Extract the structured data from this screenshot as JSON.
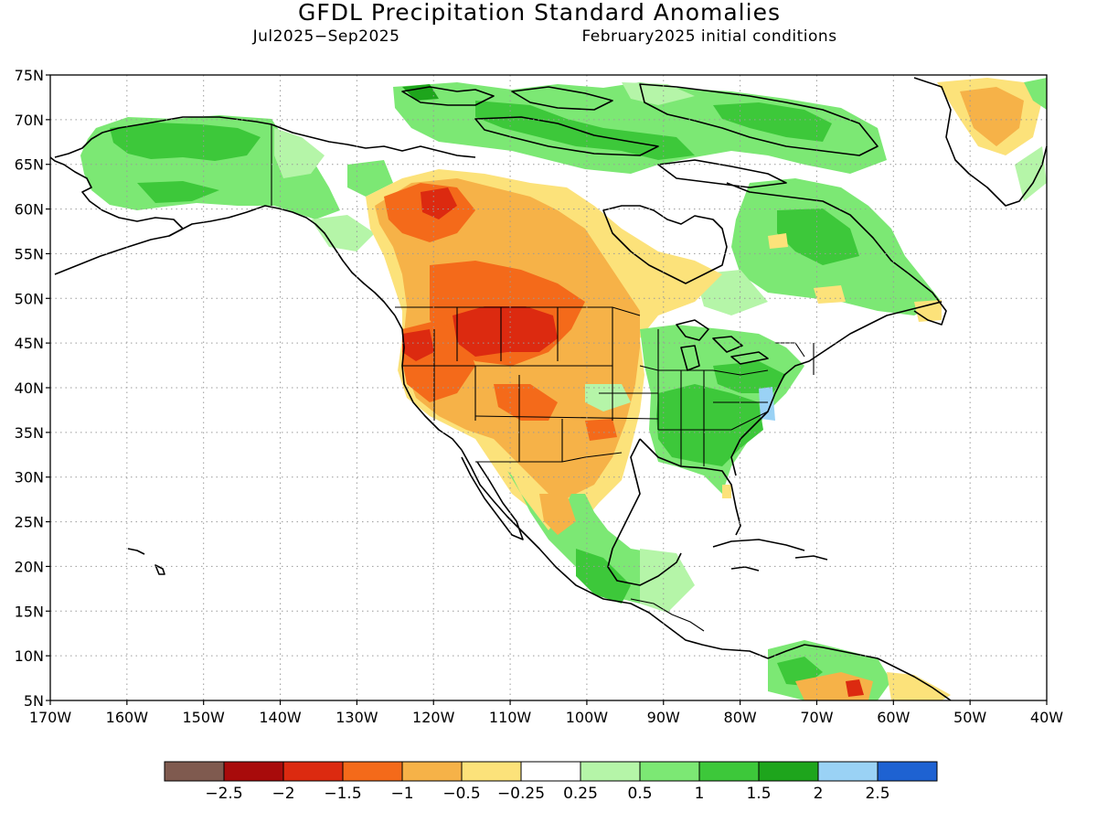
{
  "title": "GFDL Precipitation Standard Anomalies",
  "subtitle_left": "Jul2025−Sep2025",
  "subtitle_right": "February2025 initial conditions",
  "lat_labels": [
    "75N",
    "70N",
    "65N",
    "60N",
    "55N",
    "50N",
    "45N",
    "40N",
    "35N",
    "30N",
    "25N",
    "20N",
    "15N",
    "10N",
    "5N"
  ],
  "lon_labels": [
    "170W",
    "160W",
    "150W",
    "140W",
    "130W",
    "120W",
    "110W",
    "100W",
    "90W",
    "80W",
    "70W",
    "60W",
    "50W",
    "40W"
  ],
  "colorbar": {
    "colors": [
      "#7f5a4f",
      "#a80b0b",
      "#dc2a10",
      "#f46a1a",
      "#f6b248",
      "#fce27a",
      "#ffffff",
      "#b5f5a8",
      "#7ce874",
      "#3dc83a",
      "#1ea51c",
      "#9ad2f5",
      "#1e62d2"
    ],
    "labels": [
      "−2.5",
      "−2",
      "−1.5",
      "−1",
      "−0.5",
      "−0.25",
      "0.25",
      "0.5",
      "1",
      "1.5",
      "2",
      "2.5"
    ]
  },
  "colors": {
    "land_line": "#000000",
    "grid": "#9a9a9a",
    "green_light": "#b5f5a8",
    "green": "#7ce874",
    "green_mid": "#3dc83a",
    "green_dark": "#1ea51c",
    "yellow": "#fce27a",
    "orange_light": "#f6b248",
    "orange": "#f46a1a",
    "red": "#dc2a10",
    "blue_light": "#9ad2f5"
  }
}
